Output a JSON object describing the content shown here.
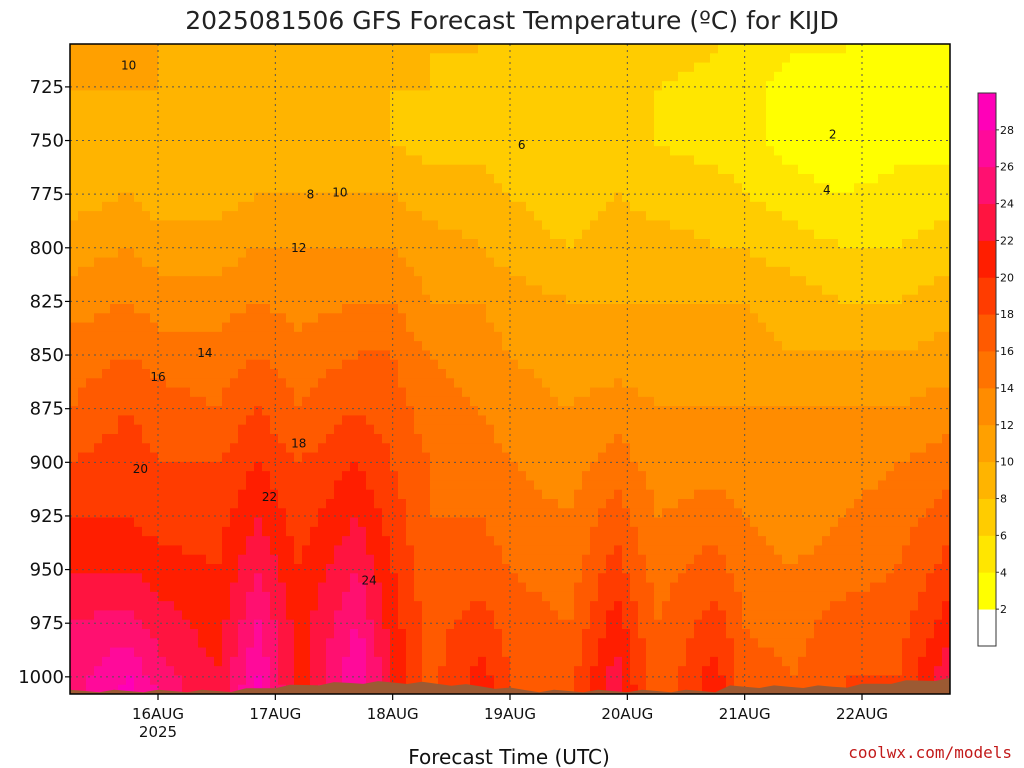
{
  "chart_data": {
    "type": "heatmap",
    "title": "2025081506 GFS Forecast Temperature (ºC) for KIJD",
    "xlabel": "Forecast Time (UTC)",
    "credit": "coolwx.com/models",
    "x_ticks": [
      {
        "label": "16AUG",
        "sub": "2025",
        "day": 1
      },
      {
        "label": "17AUG",
        "sub": "",
        "day": 2
      },
      {
        "label": "18AUG",
        "sub": "",
        "day": 3
      },
      {
        "label": "19AUG",
        "sub": "",
        "day": 4
      },
      {
        "label": "20AUG",
        "sub": "",
        "day": 5
      },
      {
        "label": "21AUG",
        "sub": "",
        "day": 6
      },
      {
        "label": "22AUG",
        "sub": "",
        "day": 7
      }
    ],
    "x_range_days": [
      0.25,
      7.75
    ],
    "y_ticks": [
      725,
      750,
      775,
      800,
      825,
      850,
      875,
      900,
      925,
      950,
      975,
      1000
    ],
    "y_range_hpa": [
      1008,
      705
    ],
    "y_axis": "pressure (hPa), inverted",
    "colorbar": {
      "levels": [
        0,
        2,
        4,
        6,
        8,
        10,
        12,
        14,
        16,
        18,
        20,
        22,
        24,
        26,
        28,
        30
      ],
      "tick_labels": [
        "2",
        "4",
        "6",
        "8",
        "10",
        "12",
        "14",
        "16",
        "18",
        "20",
        "22",
        "24",
        "26",
        "28"
      ],
      "colors": [
        "#ffffff",
        "#ffff00",
        "#ffe600",
        "#ffcc00",
        "#ffb400",
        "#ffa000",
        "#ff8c00",
        "#ff7300",
        "#ff5a00",
        "#ff3c00",
        "#ff1e00",
        "#ff1440",
        "#ff1070",
        "#ff0a9a",
        "#ff00b8"
      ]
    },
    "temperature_profiles_degC": {
      "pressure_hpa": [
        710,
        725,
        750,
        775,
        800,
        825,
        850,
        875,
        900,
        925,
        950,
        975,
        1000,
        1008
      ],
      "columns": [
        {
          "day": 0.25,
          "temps": [
            11,
            10,
            9,
            9,
            11,
            13,
            15,
            16,
            18,
            20,
            22,
            24,
            25,
            25
          ]
        },
        {
          "day": 0.75,
          "temps": [
            10,
            10,
            9,
            10,
            12,
            14,
            16,
            18,
            19,
            20,
            22,
            25,
            28,
            29
          ]
        },
        {
          "day": 1.0,
          "temps": [
            10,
            10,
            9,
            9,
            11,
            13,
            15,
            17,
            18,
            19,
            21,
            23,
            25,
            26
          ]
        },
        {
          "day": 1.5,
          "temps": [
            9,
            9,
            8,
            9,
            11,
            13,
            15,
            16,
            18,
            19,
            20,
            21,
            22,
            22
          ]
        },
        {
          "day": 1.85,
          "temps": [
            9,
            8,
            8,
            10,
            12,
            14,
            16,
            18,
            20,
            22,
            24,
            26,
            28,
            29
          ]
        },
        {
          "day": 2.2,
          "temps": [
            9,
            9,
            9,
            10,
            12,
            13,
            15,
            16,
            18,
            19,
            20,
            21,
            21,
            21
          ]
        },
        {
          "day": 2.7,
          "temps": [
            9,
            9,
            9,
            10,
            12,
            14,
            16,
            18,
            20,
            22,
            24,
            26,
            28,
            29
          ]
        },
        {
          "day": 3.0,
          "temps": [
            9,
            8,
            8,
            10,
            12,
            14,
            16,
            17,
            18,
            19,
            20,
            21,
            22,
            22
          ]
        },
        {
          "day": 3.3,
          "temps": [
            8,
            8,
            7,
            9,
            11,
            12,
            14,
            15,
            16,
            16,
            17,
            17,
            17,
            17
          ]
        },
        {
          "day": 3.75,
          "temps": [
            8,
            7,
            7,
            9,
            10,
            12,
            13,
            14,
            15,
            16,
            17,
            19,
            21,
            21
          ]
        },
        {
          "day": 4.0,
          "temps": [
            7,
            7,
            6,
            8,
            9,
            11,
            12,
            13,
            14,
            15,
            16,
            17,
            18,
            18
          ]
        },
        {
          "day": 4.5,
          "temps": [
            7,
            6,
            6,
            7,
            8,
            10,
            11,
            12,
            13,
            14,
            15,
            16,
            17,
            17
          ]
        },
        {
          "day": 4.9,
          "temps": [
            7,
            7,
            7,
            8,
            9,
            10,
            11,
            13,
            15,
            17,
            19,
            21,
            23,
            24
          ]
        },
        {
          "day": 5.25,
          "temps": [
            7,
            6,
            6,
            7,
            9,
            10,
            11,
            12,
            13,
            14,
            15,
            16,
            16,
            16
          ]
        },
        {
          "day": 5.75,
          "temps": [
            6,
            5,
            5,
            7,
            8,
            10,
            11,
            12,
            13,
            15,
            17,
            19,
            21,
            21
          ]
        },
        {
          "day": 6.0,
          "temps": [
            5,
            5,
            5,
            6,
            8,
            10,
            11,
            12,
            13,
            14,
            15,
            16,
            17,
            17
          ]
        },
        {
          "day": 6.4,
          "temps": [
            4,
            3,
            3,
            5,
            7,
            9,
            10,
            12,
            13,
            13,
            14,
            15,
            16,
            16
          ]
        },
        {
          "day": 6.85,
          "temps": [
            4,
            3,
            2,
            4,
            6,
            8,
            10,
            12,
            13,
            14,
            15,
            17,
            18,
            18
          ]
        },
        {
          "day": 7.3,
          "temps": [
            3,
            3,
            3,
            5,
            6,
            8,
            10,
            12,
            14,
            15,
            16,
            17,
            18,
            18
          ]
        },
        {
          "day": 7.75,
          "temps": [
            4,
            3,
            3,
            5,
            7,
            9,
            11,
            13,
            15,
            17,
            19,
            21,
            24,
            25
          ]
        }
      ]
    },
    "contour_labels": [
      "10",
      "8",
      "10",
      "12",
      "14",
      "16",
      "18",
      "20",
      "22",
      "24",
      "6",
      "4",
      "2"
    ],
    "terrain_color": "#9c5a33"
  }
}
